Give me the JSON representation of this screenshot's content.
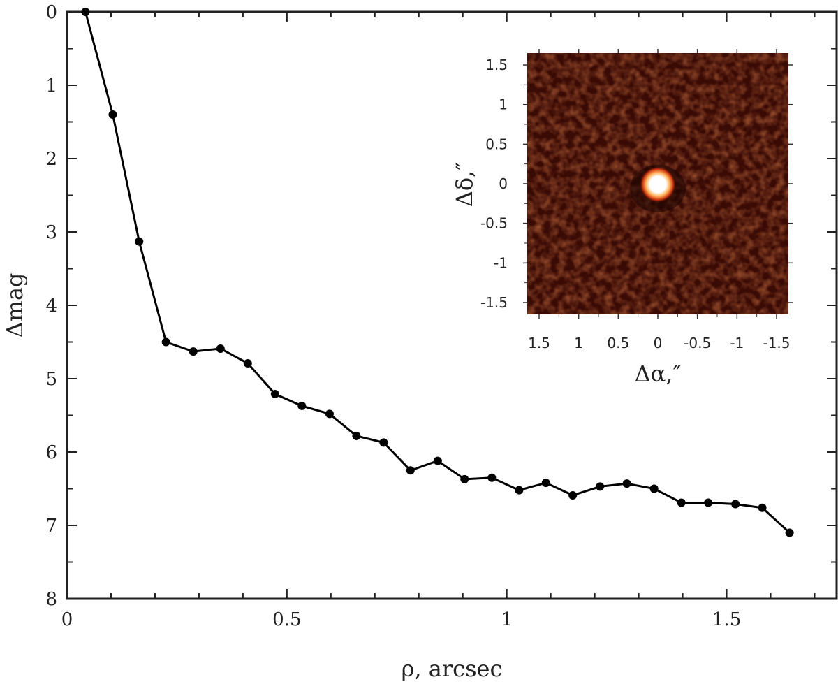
{
  "chart_data": [
    {
      "type": "line",
      "title": "",
      "xlabel": "ρ, arcsec",
      "ylabel": "Δmag",
      "xlim": [
        0,
        1.75
      ],
      "ylim": [
        0,
        8
      ],
      "y_inverted": true,
      "grid": false,
      "x_ticks": [
        {
          "value": 0,
          "label": "0"
        },
        {
          "value": 0.5,
          "label": "0.5"
        },
        {
          "value": 1,
          "label": "1"
        },
        {
          "value": 1.5,
          "label": "1.5"
        }
      ],
      "y_ticks": [
        {
          "value": 0,
          "label": "0"
        },
        {
          "value": 1,
          "label": "1"
        },
        {
          "value": 2,
          "label": "2"
        },
        {
          "value": 3,
          "label": "3"
        },
        {
          "value": 4,
          "label": "4"
        },
        {
          "value": 5,
          "label": "5"
        },
        {
          "value": 6,
          "label": "6"
        },
        {
          "value": 7,
          "label": "7"
        },
        {
          "value": 8,
          "label": "8"
        }
      ],
      "series": [
        {
          "color": "#000000",
          "x": [
            0.042,
            0.104,
            0.164,
            0.225,
            0.287,
            0.349,
            0.411,
            0.473,
            0.534,
            0.597,
            0.658,
            0.72,
            0.781,
            0.843,
            0.904,
            0.966,
            1.028,
            1.089,
            1.15,
            1.212,
            1.273,
            1.335,
            1.397,
            1.458,
            1.52,
            1.581,
            1.643
          ],
          "y": [
            0.0,
            1.4,
            3.13,
            4.5,
            4.63,
            4.59,
            4.79,
            5.21,
            5.37,
            5.48,
            5.78,
            5.87,
            6.25,
            6.12,
            6.37,
            6.35,
            6.52,
            6.42,
            6.59,
            6.47,
            6.43,
            6.5,
            6.69,
            6.69,
            6.71,
            6.76,
            7.1
          ]
        }
      ]
    },
    {
      "type": "heatmap",
      "description_of_content": "speckle interferometry image with bright central point source",
      "xlabel": "Δα,″",
      "ylabel": "Δδ,″",
      "xlim": [
        1.65,
        -1.65
      ],
      "ylim": [
        -1.65,
        1.65
      ],
      "x_ticks": [
        {
          "value": 1.5,
          "label": "1.5"
        },
        {
          "value": 1,
          "label": "1"
        },
        {
          "value": 0.5,
          "label": "0.5"
        },
        {
          "value": 0,
          "label": "0"
        },
        {
          "value": -0.5,
          "label": "-0.5"
        },
        {
          "value": -1,
          "label": "-1"
        },
        {
          "value": -1.5,
          "label": "-1.5"
        }
      ],
      "y_ticks": [
        {
          "value": 1.5,
          "label": "1.5"
        },
        {
          "value": 1,
          "label": "1"
        },
        {
          "value": 0.5,
          "label": "0.5"
        },
        {
          "value": 0,
          "label": "0"
        },
        {
          "value": -0.5,
          "label": "-0.5"
        },
        {
          "value": -1,
          "label": "-1"
        },
        {
          "value": -1.5,
          "label": "-1.5"
        }
      ],
      "colors": {
        "background": "#3a0a04",
        "speckle": "#5a1608",
        "core": "#ffffff",
        "halo": "#ff6a1a"
      }
    }
  ]
}
